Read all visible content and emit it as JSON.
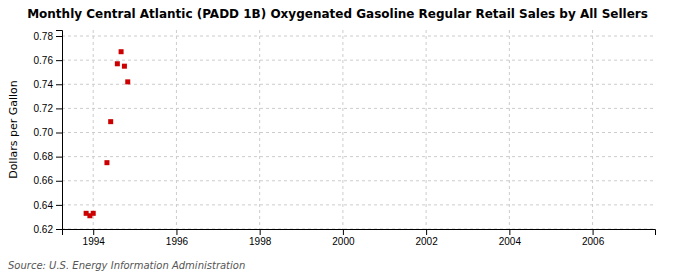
{
  "chart_data": {
    "type": "scatter",
    "title": "Monthly Central Atlantic (PADD 1B) Oxygenated Gasoline Regular Retail Sales by All Sellers",
    "ylabel": "Dollars per Gallon",
    "annotation": "Source: U.S. Energy Information Administration",
    "x": [
      1993.83,
      1993.92,
      1994.0,
      1994.33,
      1994.42,
      1994.58,
      1994.67,
      1994.75,
      1994.83
    ],
    "values": [
      0.633,
      0.631,
      0.633,
      0.675,
      0.709,
      0.757,
      0.767,
      0.755,
      0.742
    ],
    "color": "#cc0000",
    "marker": "square",
    "grid": true,
    "xlim": [
      1993.25,
      2007.5
    ],
    "ylim": [
      0.62,
      0.785
    ],
    "xticks": [
      1994,
      1996,
      1998,
      2000,
      2002,
      2004,
      2006
    ],
    "yticks": [
      0.62,
      0.64,
      0.66,
      0.68,
      {
        "value": 0.7,
        "label": "0.70"
      },
      0.72,
      0.74,
      0.76,
      0.78
    ]
  }
}
